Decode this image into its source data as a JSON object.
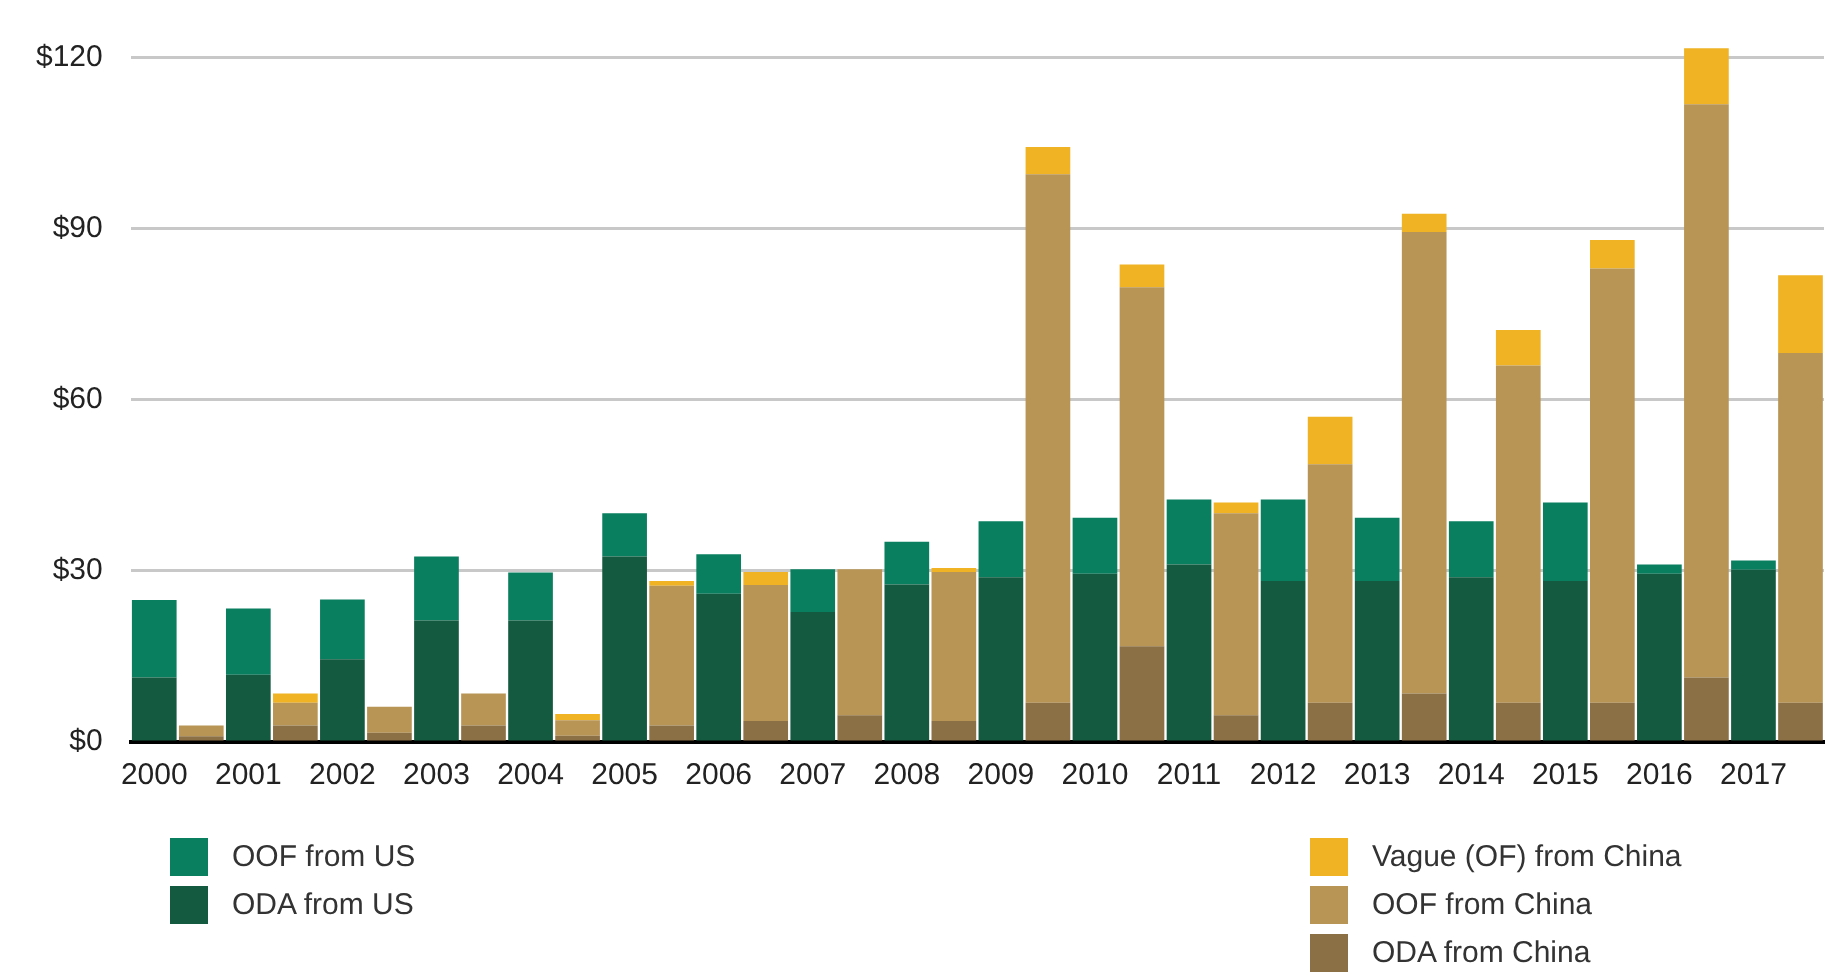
{
  "chart_data": {
    "type": "bar",
    "stacked": true,
    "legend": "bottom",
    "grid": "y",
    "categories": [
      "2000",
      null,
      "2001",
      null,
      "2002",
      null,
      "2003",
      null,
      "2004",
      null,
      "2005",
      null,
      "2006",
      null,
      "2007",
      null,
      "2008",
      null,
      "2009",
      null,
      "2010",
      null,
      "2011",
      null,
      "2012",
      null,
      "2013",
      null,
      "2014",
      null,
      "2015",
      null,
      "2016",
      null,
      "2017",
      null
    ],
    "ylim": [
      0,
      122
    ],
    "yticks": [
      {
        "value": 0,
        "label": "$0"
      },
      {
        "value": 30,
        "label": "$30"
      },
      {
        "value": 60,
        "label": "$60"
      },
      {
        "value": 90,
        "label": "$90"
      },
      {
        "value": 120,
        "label": "$120"
      }
    ],
    "series": [
      {
        "name": "ODA from US",
        "color": "#145a40",
        "values": [
          11.3,
          null,
          11.8,
          null,
          14.5,
          null,
          21.3,
          null,
          21.3,
          null,
          32.5,
          null,
          26,
          null,
          22.8,
          null,
          27.6,
          null,
          28.9,
          null,
          29.5,
          null,
          31.1,
          null,
          28.2,
          null,
          28.2,
          null,
          28.9,
          null,
          28.2,
          null,
          29.5,
          null,
          30.2,
          null
        ]
      },
      {
        "name": "OOF from US",
        "color": "#0a7f5f",
        "values": [
          13.6,
          null,
          11.6,
          null,
          10.5,
          null,
          11.2,
          null,
          8.4,
          null,
          7.6,
          null,
          6.9,
          null,
          7.5,
          null,
          7.5,
          null,
          9.8,
          null,
          9.8,
          null,
          11.4,
          null,
          14.3,
          null,
          11.1,
          null,
          9.8,
          null,
          13.8,
          null,
          1.6,
          null,
          1.6,
          null
        ]
      },
      {
        "name": "ODA from China",
        "color": "#8c7045",
        "values": [
          null,
          1,
          null,
          2.9,
          null,
          1.6,
          null,
          2.9,
          null,
          1.1,
          null,
          2.9,
          null,
          3.7,
          null,
          4.7,
          null,
          3.7,
          null,
          6.9,
          null,
          16.8,
          null,
          4.7,
          null,
          6.9,
          null,
          8.5,
          null,
          6.9,
          null,
          6.9,
          null,
          11.3,
          null,
          6.9
        ]
      },
      {
        "name": "OOF from China",
        "color": "#b89555",
        "values": [
          null,
          1.9,
          null,
          4,
          null,
          4.6,
          null,
          5.6,
          null,
          2.7,
          null,
          24.5,
          null,
          23.8,
          null,
          25.6,
          null,
          26.1,
          null,
          92.6,
          null,
          62.9,
          null,
          35.4,
          null,
          41.8,
          null,
          80.9,
          null,
          59.1,
          null,
          76.1,
          null,
          100.5,
          null,
          61.3
        ]
      },
      {
        "name": "Vague (OF) from China",
        "color": "#efb324",
        "values": [
          null,
          0,
          null,
          1.6,
          null,
          0,
          null,
          0,
          null,
          1.1,
          null,
          0.8,
          null,
          2.3,
          null,
          0,
          null,
          0.7,
          null,
          4.8,
          null,
          4,
          null,
          1.9,
          null,
          8.3,
          null,
          3.2,
          null,
          6.2,
          null,
          5,
          null,
          9.8,
          null,
          13.6
        ]
      }
    ]
  }
}
